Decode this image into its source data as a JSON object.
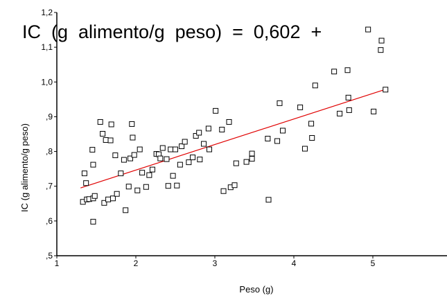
{
  "chart_data": {
    "type": "scatter",
    "title": "",
    "equation": "IC  (g  alimento/g  peso)  =  0,602  +",
    "xlabel": "Peso (g)",
    "ylabel": "IC (g alimento/g peso)",
    "xlim": [
      1,
      6
    ],
    "ylim": [
      0.5,
      1.2
    ],
    "xticks": [
      1,
      2,
      3,
      4,
      5
    ],
    "xtick_labels": [
      "1",
      "2",
      "3",
      "4",
      "5"
    ],
    "yticks": [
      0.5,
      0.6,
      0.7,
      0.8,
      0.9,
      1.0,
      1.1,
      1.2
    ],
    "ytick_labels": [
      ",5",
      ",6",
      ",7",
      ",8",
      ",9",
      "1,0",
      "1,1",
      "1,2"
    ],
    "grid": false,
    "marker_color": "#000000",
    "fit_line_color": "#e00000",
    "fit_line": {
      "x": [
        1.3,
        5.15
      ],
      "y": [
        0.695,
        0.978
      ]
    },
    "points": [
      {
        "x": 1.33,
        "y": 0.655
      },
      {
        "x": 1.35,
        "y": 0.737
      },
      {
        "x": 1.37,
        "y": 0.709
      },
      {
        "x": 1.38,
        "y": 0.662
      },
      {
        "x": 1.41,
        "y": 0.663
      },
      {
        "x": 1.45,
        "y": 0.805
      },
      {
        "x": 1.46,
        "y": 0.762
      },
      {
        "x": 1.46,
        "y": 0.665
      },
      {
        "x": 1.46,
        "y": 0.598
      },
      {
        "x": 1.48,
        "y": 0.672
      },
      {
        "x": 1.55,
        "y": 0.885
      },
      {
        "x": 1.58,
        "y": 0.851
      },
      {
        "x": 1.6,
        "y": 0.652
      },
      {
        "x": 1.62,
        "y": 0.833
      },
      {
        "x": 1.65,
        "y": 0.662
      },
      {
        "x": 1.68,
        "y": 0.832
      },
      {
        "x": 1.69,
        "y": 0.878
      },
      {
        "x": 1.71,
        "y": 0.665
      },
      {
        "x": 1.74,
        "y": 0.789
      },
      {
        "x": 1.76,
        "y": 0.678
      },
      {
        "x": 1.81,
        "y": 0.737
      },
      {
        "x": 1.85,
        "y": 0.776
      },
      {
        "x": 1.87,
        "y": 0.631
      },
      {
        "x": 1.91,
        "y": 0.699
      },
      {
        "x": 1.93,
        "y": 0.78
      },
      {
        "x": 1.95,
        "y": 0.879
      },
      {
        "x": 1.96,
        "y": 0.84
      },
      {
        "x": 1.98,
        "y": 0.79
      },
      {
        "x": 2.02,
        "y": 0.688
      },
      {
        "x": 2.05,
        "y": 0.806
      },
      {
        "x": 2.08,
        "y": 0.739
      },
      {
        "x": 2.13,
        "y": 0.698
      },
      {
        "x": 2.17,
        "y": 0.732
      },
      {
        "x": 2.21,
        "y": 0.748
      },
      {
        "x": 2.26,
        "y": 0.793
      },
      {
        "x": 2.29,
        "y": 0.792
      },
      {
        "x": 2.31,
        "y": 0.78
      },
      {
        "x": 2.34,
        "y": 0.81
      },
      {
        "x": 2.39,
        "y": 0.778
      },
      {
        "x": 2.41,
        "y": 0.701
      },
      {
        "x": 2.44,
        "y": 0.806
      },
      {
        "x": 2.47,
        "y": 0.73
      },
      {
        "x": 2.5,
        "y": 0.806
      },
      {
        "x": 2.52,
        "y": 0.702
      },
      {
        "x": 2.56,
        "y": 0.762
      },
      {
        "x": 2.58,
        "y": 0.815
      },
      {
        "x": 2.62,
        "y": 0.828
      },
      {
        "x": 2.67,
        "y": 0.769
      },
      {
        "x": 2.72,
        "y": 0.783
      },
      {
        "x": 2.76,
        "y": 0.845
      },
      {
        "x": 2.8,
        "y": 0.854
      },
      {
        "x": 2.81,
        "y": 0.777
      },
      {
        "x": 2.86,
        "y": 0.822
      },
      {
        "x": 2.92,
        "y": 0.866
      },
      {
        "x": 2.93,
        "y": 0.806
      },
      {
        "x": 3.01,
        "y": 0.917
      },
      {
        "x": 3.09,
        "y": 0.863
      },
      {
        "x": 3.11,
        "y": 0.686
      },
      {
        "x": 3.18,
        "y": 0.885
      },
      {
        "x": 3.2,
        "y": 0.697
      },
      {
        "x": 3.25,
        "y": 0.703
      },
      {
        "x": 3.27,
        "y": 0.766
      },
      {
        "x": 3.4,
        "y": 0.77
      },
      {
        "x": 3.47,
        "y": 0.779
      },
      {
        "x": 3.47,
        "y": 0.794
      },
      {
        "x": 3.67,
        "y": 0.837
      },
      {
        "x": 3.68,
        "y": 0.661
      },
      {
        "x": 3.79,
        "y": 0.83
      },
      {
        "x": 3.82,
        "y": 0.939
      },
      {
        "x": 3.86,
        "y": 0.86
      },
      {
        "x": 4.08,
        "y": 0.927
      },
      {
        "x": 4.14,
        "y": 0.808
      },
      {
        "x": 4.22,
        "y": 0.88
      },
      {
        "x": 4.23,
        "y": 0.839
      },
      {
        "x": 4.27,
        "y": 0.99
      },
      {
        "x": 4.51,
        "y": 1.03
      },
      {
        "x": 4.58,
        "y": 0.909
      },
      {
        "x": 4.68,
        "y": 1.034
      },
      {
        "x": 4.69,
        "y": 0.955
      },
      {
        "x": 4.7,
        "y": 0.919
      },
      {
        "x": 4.94,
        "y": 1.151
      },
      {
        "x": 5.01,
        "y": 0.915
      },
      {
        "x": 5.1,
        "y": 1.092
      },
      {
        "x": 5.11,
        "y": 1.119
      },
      {
        "x": 5.16,
        "y": 0.978
      }
    ]
  }
}
